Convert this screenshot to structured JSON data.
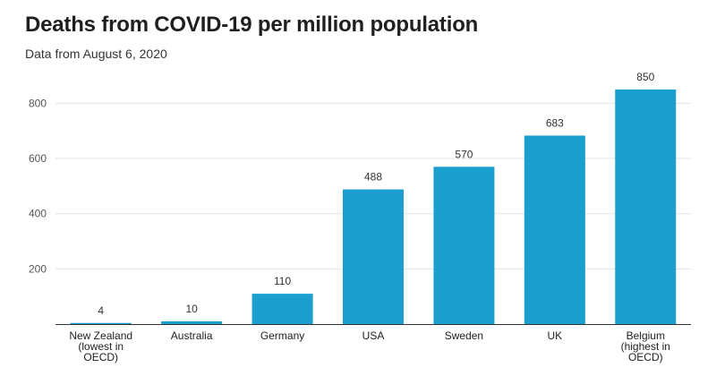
{
  "chart_data": {
    "type": "bar",
    "title": "Deaths from COVID-19 per million population",
    "subtitle": "Data from August 6, 2020",
    "xlabel": "",
    "ylabel": "",
    "ylim": [
      0,
      850
    ],
    "yticks": [
      200,
      400,
      600,
      800
    ],
    "grid": true,
    "bar_color": "#1a9fce",
    "categories": [
      [
        "New Zealand",
        "(lowest in",
        "OECD)"
      ],
      [
        "Australia"
      ],
      [
        "Germany"
      ],
      [
        "USA"
      ],
      [
        "Sweden"
      ],
      [
        "UK"
      ],
      [
        "Belgium",
        "(highest in",
        "OECD)"
      ]
    ],
    "values": [
      4,
      10,
      110,
      488,
      570,
      683,
      850
    ]
  }
}
